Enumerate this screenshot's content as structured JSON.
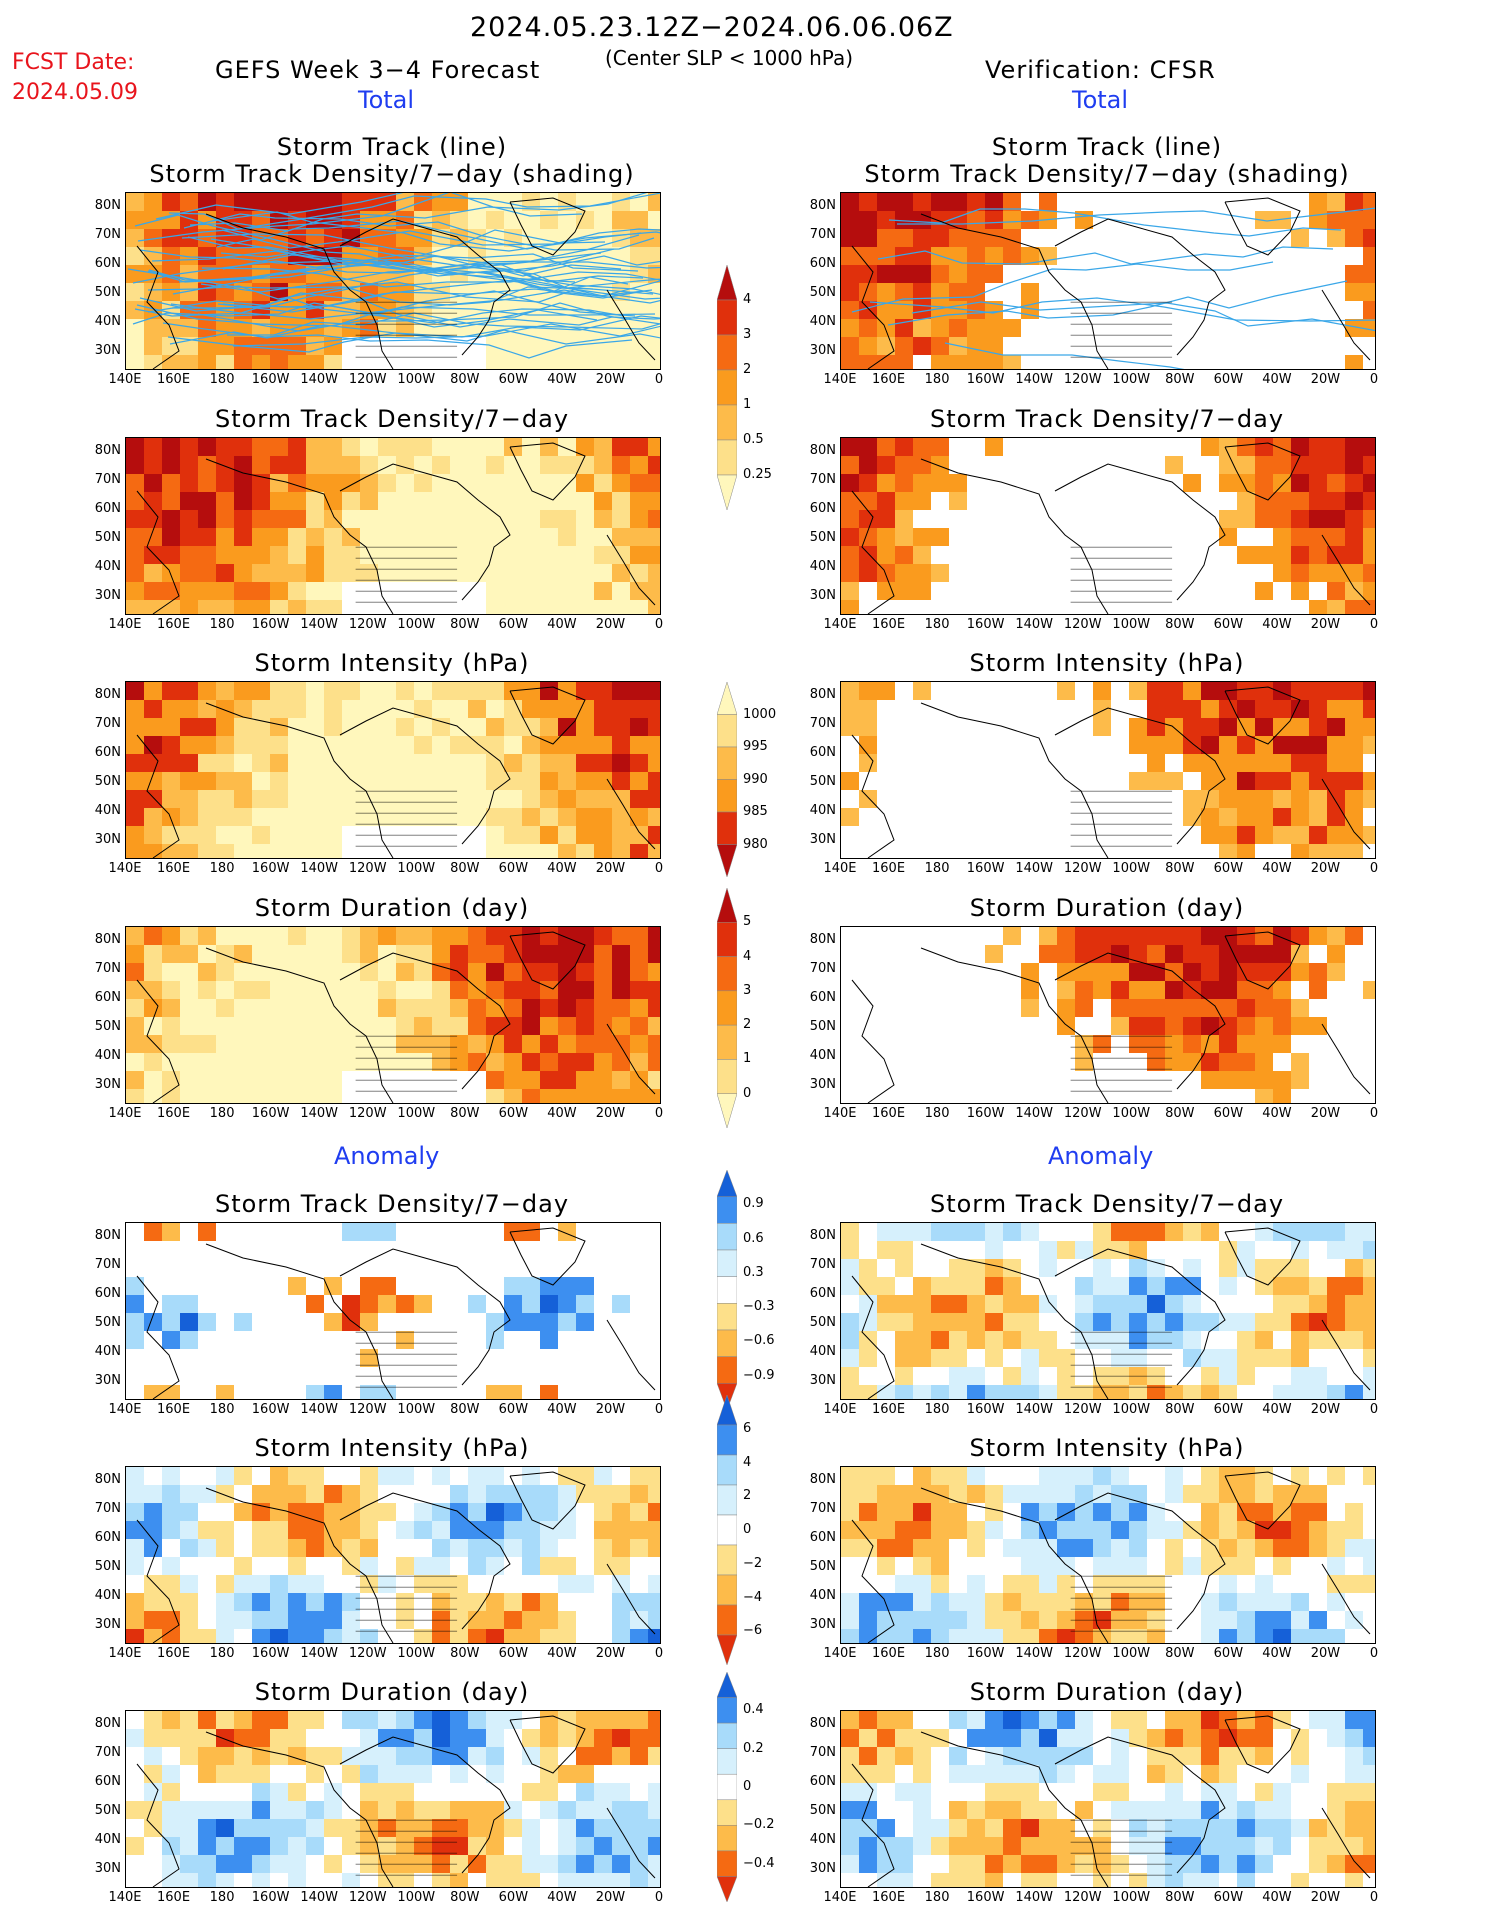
{
  "header": {
    "date_range": "2024.05.23.12Z−2024.06.06.06Z",
    "fcst_label": "FCST Date:",
    "fcst_date": "2024.05.09",
    "model_title": "GEFS Week 3−4 Forecast",
    "criterion": "(Center SLP < 1000 hPa)",
    "verification": "Verification: CFSR"
  },
  "sections": {
    "total": "Total",
    "anomaly": "Anomaly"
  },
  "panel_titles": {
    "track_line": "Storm Track (line)",
    "track_shading": "Storm Track Density/7−day (shading)",
    "density": "Storm Track Density/7−day",
    "intensity": "Storm Intensity (hPa)",
    "duration": "Storm Duration (day)"
  },
  "axes": {
    "lat_ticks": [
      "80N",
      "70N",
      "60N",
      "50N",
      "40N",
      "30N"
    ],
    "lon_ticks": [
      "140E",
      "160E",
      "180",
      "160W",
      "140W",
      "120W",
      "100W",
      "80W",
      "60W",
      "40W",
      "20W",
      "0"
    ]
  },
  "colorbars": {
    "density_total": [
      "4",
      "3",
      "2",
      "1",
      "0.5",
      "0.25"
    ],
    "intensity_total": [
      "1000",
      "995",
      "990",
      "985",
      "980"
    ],
    "duration_total": [
      "5",
      "4",
      "3",
      "2",
      "1",
      "0"
    ],
    "density_anom": [
      "0.9",
      "0.6",
      "0.3",
      "−0.3",
      "−0.6",
      "−0.9"
    ],
    "intensity_anom": [
      "6",
      "4",
      "2",
      "0",
      "−2",
      "−4",
      "−6"
    ],
    "duration_anom": [
      "0.4",
      "0.2",
      "0",
      "−0.2",
      "−0.4"
    ]
  },
  "colors": {
    "total_scale": [
      "#fff7bc",
      "#fde08a",
      "#fdbb4a",
      "#fa9b1e",
      "#f56a12",
      "#e0300c",
      "#b50d0d"
    ],
    "intensity_scale": [
      "#fff7bc",
      "#fde08a",
      "#fdbb4a",
      "#fa9b1e",
      "#e0300c",
      "#b50d0d"
    ],
    "anom_scale": [
      "#1560d8",
      "#3d8ff0",
      "#a8dbfa",
      "#d6f0fc",
      "#ffffff",
      "#fde08a",
      "#fdbb4a",
      "#f56a12",
      "#e0300c"
    ],
    "track_line": "#3aa7e8"
  }
}
